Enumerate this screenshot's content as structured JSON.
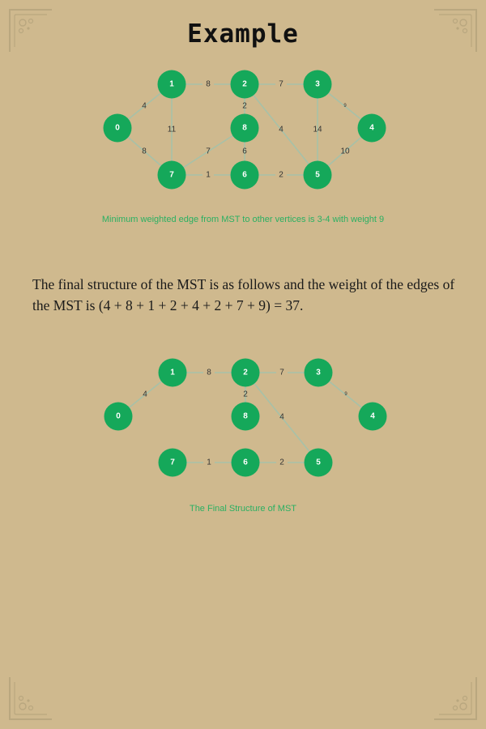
{
  "title": "Example",
  "graph1": {
    "nodes": [
      "0",
      "1",
      "2",
      "3",
      "4",
      "5",
      "6",
      "7",
      "8"
    ],
    "edges": [
      {
        "from": "0",
        "to": "1",
        "weight": "4"
      },
      {
        "from": "0",
        "to": "7",
        "weight": "8"
      },
      {
        "from": "1",
        "to": "2",
        "weight": "8"
      },
      {
        "from": "1",
        "to": "7",
        "weight": "11"
      },
      {
        "from": "2",
        "to": "3",
        "weight": "7"
      },
      {
        "from": "2",
        "to": "8",
        "weight": "2"
      },
      {
        "from": "2",
        "to": "5",
        "weight": "4"
      },
      {
        "from": "3",
        "to": "4",
        "weight": "9"
      },
      {
        "from": "3",
        "to": "5",
        "weight": "14"
      },
      {
        "from": "4",
        "to": "5",
        "weight": "10"
      },
      {
        "from": "5",
        "to": "6",
        "weight": "2"
      },
      {
        "from": "6",
        "to": "7",
        "weight": "1"
      },
      {
        "from": "6",
        "to": "8",
        "weight": "6"
      },
      {
        "from": "7",
        "to": "8",
        "weight": "7"
      }
    ],
    "caption": "Minimum weighted edge from MST to other vertices is 3-4 with weight 9"
  },
  "paragraph": "The final structure of the MST is as follows and the weight of the edges of the MST is (4 + 8 + 1 + 2 + 4 + 2 + 7 + 9) = 37.",
  "graph2": {
    "nodes": [
      "0",
      "1",
      "2",
      "3",
      "4",
      "5",
      "6",
      "7",
      "8"
    ],
    "edges": [
      {
        "from": "0",
        "to": "1",
        "weight": "4"
      },
      {
        "from": "1",
        "to": "2",
        "weight": "8"
      },
      {
        "from": "2",
        "to": "3",
        "weight": "7"
      },
      {
        "from": "2",
        "to": "8",
        "weight": "2"
      },
      {
        "from": "2",
        "to": "5",
        "weight": "4"
      },
      {
        "from": "3",
        "to": "4",
        "weight": "9"
      },
      {
        "from": "5",
        "to": "6",
        "weight": "2"
      },
      {
        "from": "6",
        "to": "7",
        "weight": "1"
      }
    ],
    "caption": "The Final Structure of MST"
  },
  "colors": {
    "background": "#cfb98e",
    "node": "#15a85a",
    "edge": "#a7c1a8",
    "caption": "#2ab062"
  },
  "icons": {
    "corner_ornament": "ornament-corner-icon"
  }
}
